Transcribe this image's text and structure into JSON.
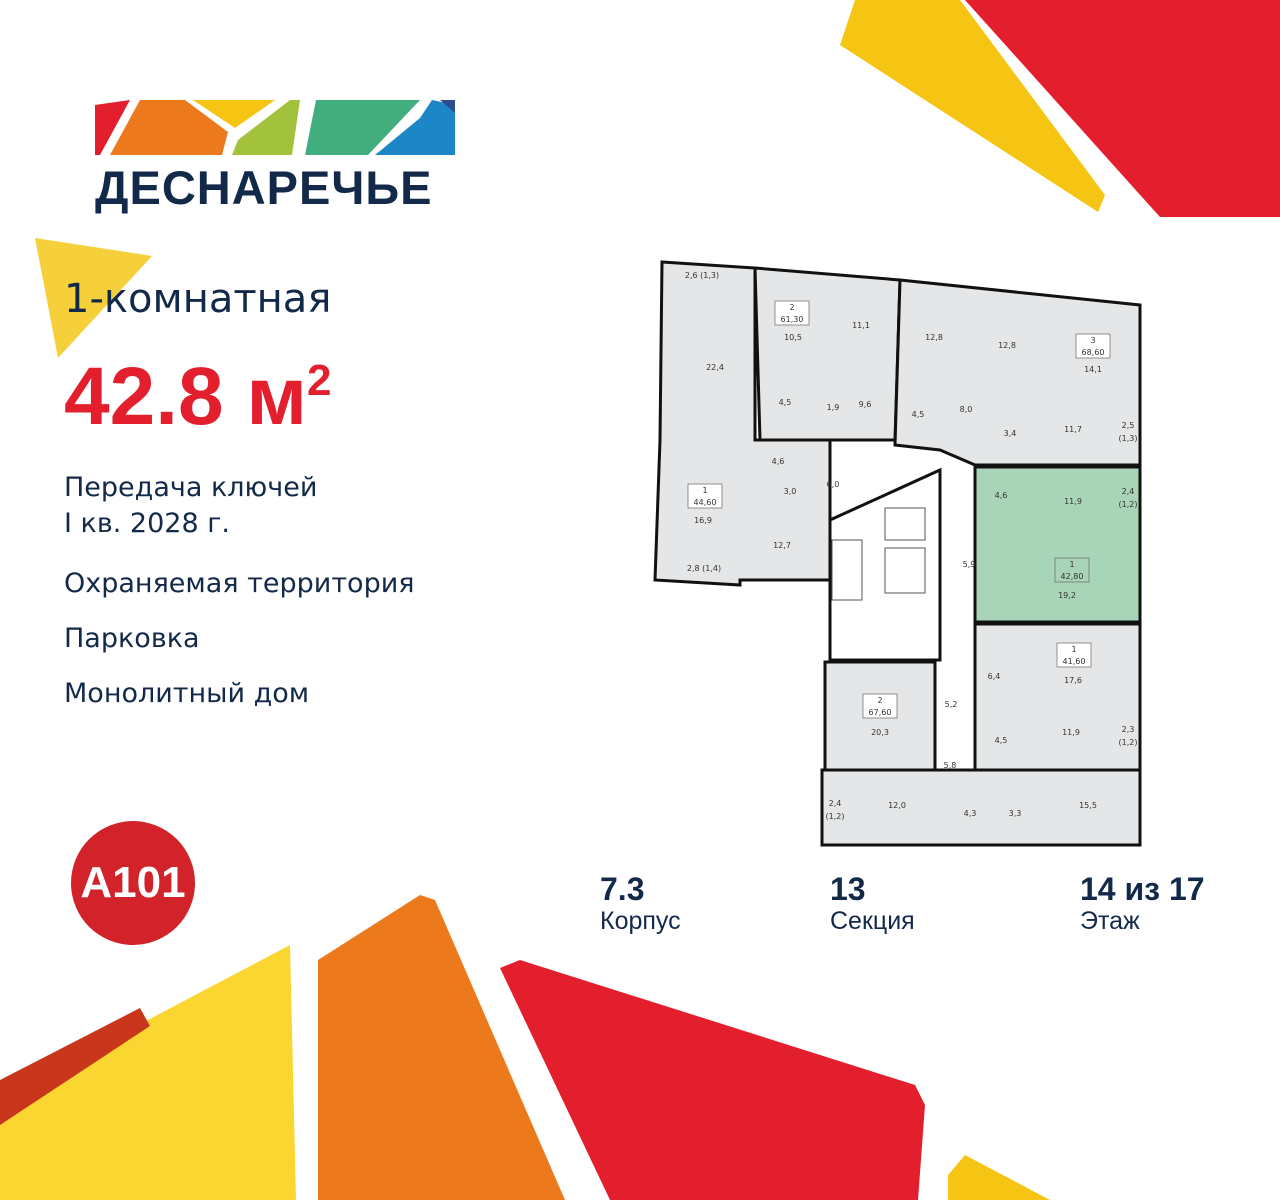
{
  "brand": {
    "name": "ДЕСНАРЕЧЬЕ",
    "developer": "A101",
    "colors": {
      "red": "#e31e2d",
      "orange": "#ec7a1c",
      "yellow": "#f6c514",
      "green": "#a3c23b",
      "teal": "#42ad7d",
      "blue": "#1c86c6",
      "navy": "#12294a"
    }
  },
  "apartment": {
    "rooms": "1-комнатная",
    "area": "42.8 м",
    "area_sup": "2",
    "handover_line1": "Передача ключей",
    "handover_line2": "I кв. 2028 г.",
    "features": [
      "Охраняемая территория",
      "Парковка",
      "Монолитный дом"
    ]
  },
  "stats": [
    {
      "value": "7.3",
      "label": "Корпус"
    },
    {
      "value": "13",
      "label": "Секция"
    },
    {
      "value": "14 из 17",
      "label": "Этаж"
    }
  ],
  "plan": {
    "highlight_color": "#a8d5b8",
    "apartments": [
      {
        "rooms": "2",
        "area": "61,30"
      },
      {
        "rooms": "3",
        "area": "68,60"
      },
      {
        "rooms": "1",
        "area": "44,60"
      },
      {
        "rooms": "1",
        "area": "42,80",
        "selected": true
      },
      {
        "rooms": "1",
        "area": "41,60"
      },
      {
        "rooms": "2",
        "area": "67,60"
      }
    ],
    "room_areas": [
      "2,6 (1,3)",
      "10,5",
      "11,1",
      "22,4",
      "12,8",
      "12,8",
      "14,1",
      "4,5",
      "1,9",
      "9,6",
      "4,5",
      "8,0",
      "3,4",
      "11,7",
      "2,5",
      "(1,3)",
      "4,6",
      "3,0",
      "6,0",
      "16,9",
      "12,7",
      "2,8 (1,4)",
      "4,6",
      "11,9",
      "2,4",
      "(1,2)",
      "5,9",
      "19,2",
      "6,4",
      "17,6",
      "20,3",
      "5,2",
      "4,5",
      "11,9",
      "2,3",
      "(1,2)",
      "5,8",
      "2,4",
      "(1,2)",
      "12,0",
      "4,3",
      "3,3",
      "15,5"
    ]
  }
}
